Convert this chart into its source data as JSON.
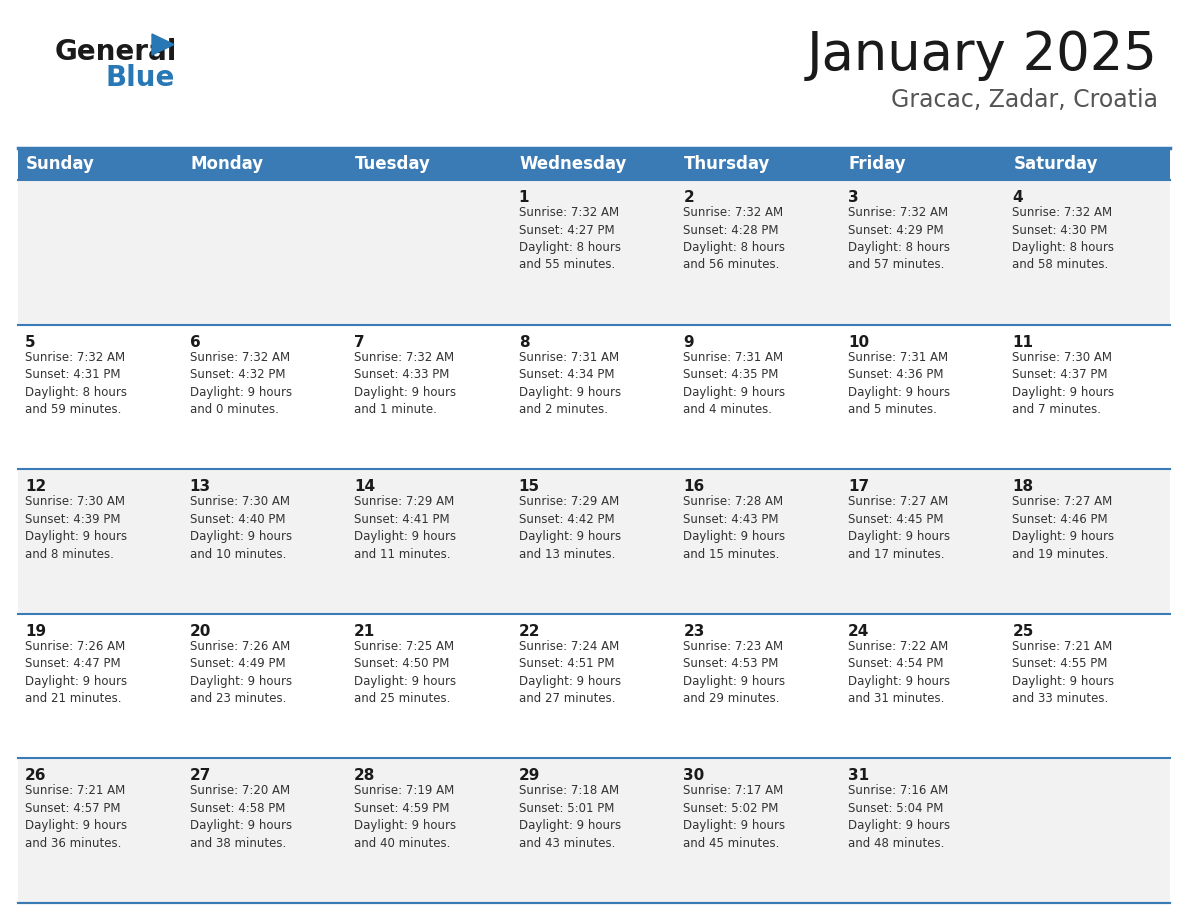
{
  "title": "January 2025",
  "subtitle": "Gracac, Zadar, Croatia",
  "header_bg": "#3a7ab5",
  "header_text_color": "#ffffff",
  "row_bg_light": "#f2f2f2",
  "row_bg_white": "#ffffff",
  "border_color": "#3a7ab5",
  "days_of_week": [
    "Sunday",
    "Monday",
    "Tuesday",
    "Wednesday",
    "Thursday",
    "Friday",
    "Saturday"
  ],
  "calendar_data": [
    [
      {
        "day": "",
        "info": ""
      },
      {
        "day": "",
        "info": ""
      },
      {
        "day": "",
        "info": ""
      },
      {
        "day": "1",
        "info": "Sunrise: 7:32 AM\nSunset: 4:27 PM\nDaylight: 8 hours\nand 55 minutes."
      },
      {
        "day": "2",
        "info": "Sunrise: 7:32 AM\nSunset: 4:28 PM\nDaylight: 8 hours\nand 56 minutes."
      },
      {
        "day": "3",
        "info": "Sunrise: 7:32 AM\nSunset: 4:29 PM\nDaylight: 8 hours\nand 57 minutes."
      },
      {
        "day": "4",
        "info": "Sunrise: 7:32 AM\nSunset: 4:30 PM\nDaylight: 8 hours\nand 58 minutes."
      }
    ],
    [
      {
        "day": "5",
        "info": "Sunrise: 7:32 AM\nSunset: 4:31 PM\nDaylight: 8 hours\nand 59 minutes."
      },
      {
        "day": "6",
        "info": "Sunrise: 7:32 AM\nSunset: 4:32 PM\nDaylight: 9 hours\nand 0 minutes."
      },
      {
        "day": "7",
        "info": "Sunrise: 7:32 AM\nSunset: 4:33 PM\nDaylight: 9 hours\nand 1 minute."
      },
      {
        "day": "8",
        "info": "Sunrise: 7:31 AM\nSunset: 4:34 PM\nDaylight: 9 hours\nand 2 minutes."
      },
      {
        "day": "9",
        "info": "Sunrise: 7:31 AM\nSunset: 4:35 PM\nDaylight: 9 hours\nand 4 minutes."
      },
      {
        "day": "10",
        "info": "Sunrise: 7:31 AM\nSunset: 4:36 PM\nDaylight: 9 hours\nand 5 minutes."
      },
      {
        "day": "11",
        "info": "Sunrise: 7:30 AM\nSunset: 4:37 PM\nDaylight: 9 hours\nand 7 minutes."
      }
    ],
    [
      {
        "day": "12",
        "info": "Sunrise: 7:30 AM\nSunset: 4:39 PM\nDaylight: 9 hours\nand 8 minutes."
      },
      {
        "day": "13",
        "info": "Sunrise: 7:30 AM\nSunset: 4:40 PM\nDaylight: 9 hours\nand 10 minutes."
      },
      {
        "day": "14",
        "info": "Sunrise: 7:29 AM\nSunset: 4:41 PM\nDaylight: 9 hours\nand 11 minutes."
      },
      {
        "day": "15",
        "info": "Sunrise: 7:29 AM\nSunset: 4:42 PM\nDaylight: 9 hours\nand 13 minutes."
      },
      {
        "day": "16",
        "info": "Sunrise: 7:28 AM\nSunset: 4:43 PM\nDaylight: 9 hours\nand 15 minutes."
      },
      {
        "day": "17",
        "info": "Sunrise: 7:27 AM\nSunset: 4:45 PM\nDaylight: 9 hours\nand 17 minutes."
      },
      {
        "day": "18",
        "info": "Sunrise: 7:27 AM\nSunset: 4:46 PM\nDaylight: 9 hours\nand 19 minutes."
      }
    ],
    [
      {
        "day": "19",
        "info": "Sunrise: 7:26 AM\nSunset: 4:47 PM\nDaylight: 9 hours\nand 21 minutes."
      },
      {
        "day": "20",
        "info": "Sunrise: 7:26 AM\nSunset: 4:49 PM\nDaylight: 9 hours\nand 23 minutes."
      },
      {
        "day": "21",
        "info": "Sunrise: 7:25 AM\nSunset: 4:50 PM\nDaylight: 9 hours\nand 25 minutes."
      },
      {
        "day": "22",
        "info": "Sunrise: 7:24 AM\nSunset: 4:51 PM\nDaylight: 9 hours\nand 27 minutes."
      },
      {
        "day": "23",
        "info": "Sunrise: 7:23 AM\nSunset: 4:53 PM\nDaylight: 9 hours\nand 29 minutes."
      },
      {
        "day": "24",
        "info": "Sunrise: 7:22 AM\nSunset: 4:54 PM\nDaylight: 9 hours\nand 31 minutes."
      },
      {
        "day": "25",
        "info": "Sunrise: 7:21 AM\nSunset: 4:55 PM\nDaylight: 9 hours\nand 33 minutes."
      }
    ],
    [
      {
        "day": "26",
        "info": "Sunrise: 7:21 AM\nSunset: 4:57 PM\nDaylight: 9 hours\nand 36 minutes."
      },
      {
        "day": "27",
        "info": "Sunrise: 7:20 AM\nSunset: 4:58 PM\nDaylight: 9 hours\nand 38 minutes."
      },
      {
        "day": "28",
        "info": "Sunrise: 7:19 AM\nSunset: 4:59 PM\nDaylight: 9 hours\nand 40 minutes."
      },
      {
        "day": "29",
        "info": "Sunrise: 7:18 AM\nSunset: 5:01 PM\nDaylight: 9 hours\nand 43 minutes."
      },
      {
        "day": "30",
        "info": "Sunrise: 7:17 AM\nSunset: 5:02 PM\nDaylight: 9 hours\nand 45 minutes."
      },
      {
        "day": "31",
        "info": "Sunrise: 7:16 AM\nSunset: 5:04 PM\nDaylight: 9 hours\nand 48 minutes."
      },
      {
        "day": "",
        "info": ""
      }
    ]
  ],
  "logo_general_color": "#1a1a1a",
  "logo_blue_color": "#2878b5",
  "logo_triangle_color": "#2878b5",
  "title_color": "#1a1a1a",
  "subtitle_color": "#555555",
  "day_number_color": "#1a1a1a",
  "info_text_color": "#333333",
  "title_fontsize": 38,
  "subtitle_fontsize": 17,
  "header_fontsize": 12,
  "day_fontsize": 11,
  "info_fontsize": 8.5
}
